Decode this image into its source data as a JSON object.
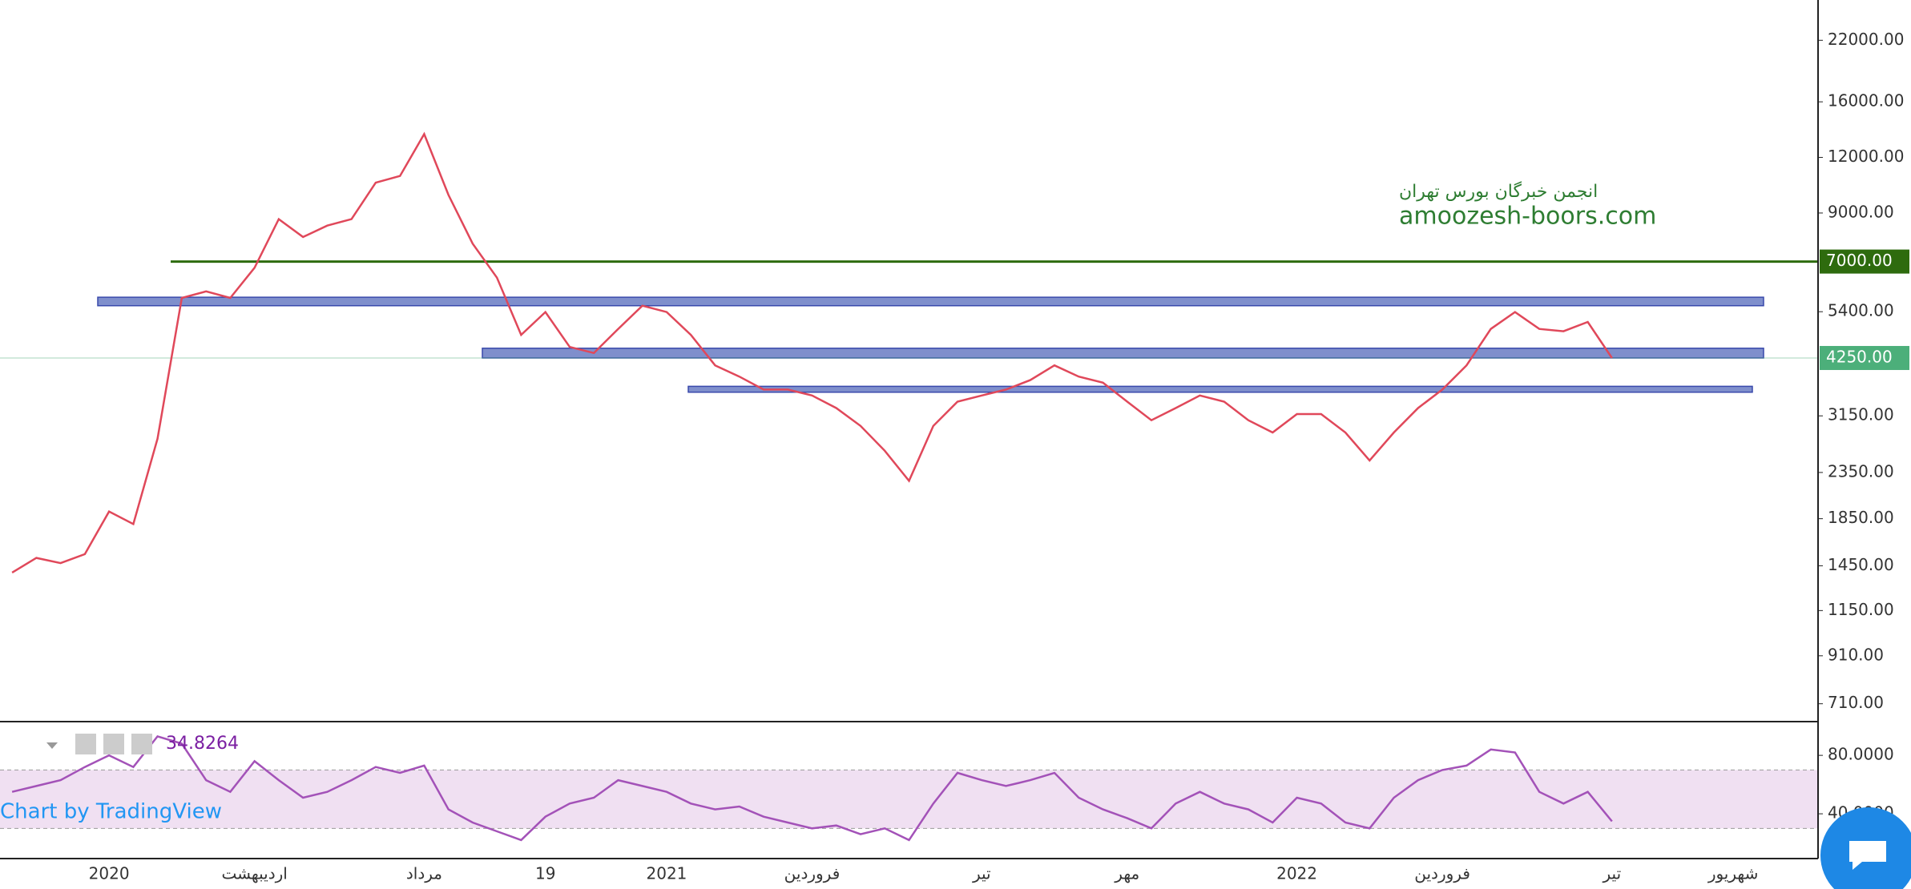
{
  "chart_data": [
    {
      "type": "line",
      "log_scale": true,
      "grid": false,
      "color": "#e0485a",
      "categories": [
        null,
        null,
        null,
        null,
        "2020",
        null,
        null,
        null,
        null,
        null,
        "اردیبهشت",
        null,
        null,
        null,
        null,
        null,
        null,
        "مرداد",
        null,
        null,
        null,
        null,
        "19",
        null,
        null,
        null,
        null,
        "2021",
        null,
        null,
        null,
        null,
        null,
        "فروردین",
        null,
        null,
        null,
        null,
        null,
        null,
        "تیر",
        null,
        null,
        null,
        null,
        null,
        "مهر",
        null,
        null,
        null,
        null,
        null,
        null,
        "2022",
        null,
        null,
        null,
        null,
        null,
        "فروردین",
        null,
        null,
        null,
        null,
        null,
        null,
        "تیر",
        null,
        null,
        null,
        null,
        "شهریور",
        null,
        null,
        null
      ],
      "values": [
        1400,
        1510,
        1470,
        1540,
        1920,
        1800,
        2800,
        5800,
        6000,
        5800,
        6780,
        8720,
        7950,
        8430,
        8720,
        10530,
        10900,
        13540,
        9880,
        7680,
        6440,
        4790,
        5390,
        4500,
        4360,
        4940,
        5570,
        5390,
        4790,
        4090,
        3860,
        3610,
        3610,
        3500,
        3280,
        2990,
        2630,
        2250,
        2990,
        3390,
        3500,
        3610,
        3790,
        4090,
        3860,
        3740,
        3390,
        3080,
        3280,
        3500,
        3390,
        3080,
        2890,
        3180,
        3180,
        2890,
        2500,
        2890,
        3280,
        3610,
        4090,
        4940,
        5390,
        4940,
        4880,
        5120,
        4250,
        null,
        null,
        null,
        null,
        null,
        null,
        null,
        null
      ],
      "ylim": [
        650,
        27100
      ],
      "yticks": [
        {
          "value": 22000,
          "label": "22000.00"
        },
        {
          "value": 16000,
          "label": "16000.00"
        },
        {
          "value": 12000,
          "label": "12000.00"
        },
        {
          "value": 9000,
          "label": "9000.00"
        },
        {
          "value": 5400,
          "label": "5400.00"
        },
        {
          "value": 3150,
          "label": "3150.00"
        },
        {
          "value": 2350,
          "label": "2350.00"
        },
        {
          "value": 1850,
          "label": "1850.00"
        },
        {
          "value": 1450,
          "label": "1450.00"
        },
        {
          "value": 1150,
          "label": "1150.00"
        },
        {
          "value": 910,
          "label": "910.00"
        },
        {
          "value": 710,
          "label": "710.00"
        }
      ],
      "price_labels": [
        {
          "value": 7000,
          "label": "7000.00",
          "color": "#2e6b0e"
        },
        {
          "value": 4250,
          "label": "4250.00",
          "color": "#4caf7a"
        }
      ],
      "zones": [
        {
          "low": 5570,
          "high": 5820
        },
        {
          "low": 4250,
          "high": 4470
        },
        {
          "low": 3560,
          "high": 3670
        }
      ],
      "zone_color": "#7f8fcc",
      "annotations": [
        "انجمن خبرگان بورس تهران",
        "amoozesh-boors.com"
      ],
      "credit": "Chart by TradingView"
    },
    {
      "type": "line",
      "color": "#a352b8",
      "values": [
        55,
        59,
        63,
        72,
        80,
        72,
        93,
        88,
        63,
        55,
        76,
        63,
        51,
        55,
        63,
        72,
        68,
        73,
        43,
        34,
        28,
        22,
        38,
        47,
        51,
        63,
        59,
        55,
        47,
        43,
        45,
        38,
        34,
        30,
        32,
        26,
        30,
        22,
        47,
        68,
        63,
        59,
        63,
        68,
        51,
        43,
        37,
        30,
        47,
        55,
        47,
        43,
        34,
        51,
        47,
        34,
        30,
        51,
        63,
        70,
        73,
        84,
        82,
        55,
        47,
        55,
        34.8264,
        null,
        null,
        null,
        null,
        null,
        null,
        null,
        null
      ],
      "ylim": [
        11,
        102
      ],
      "yticks": [
        {
          "value": 80,
          "label": "80.0000"
        },
        {
          "value": 40,
          "label": "40.0000"
        }
      ],
      "bands": [
        30,
        70
      ]
    }
  ]
}
